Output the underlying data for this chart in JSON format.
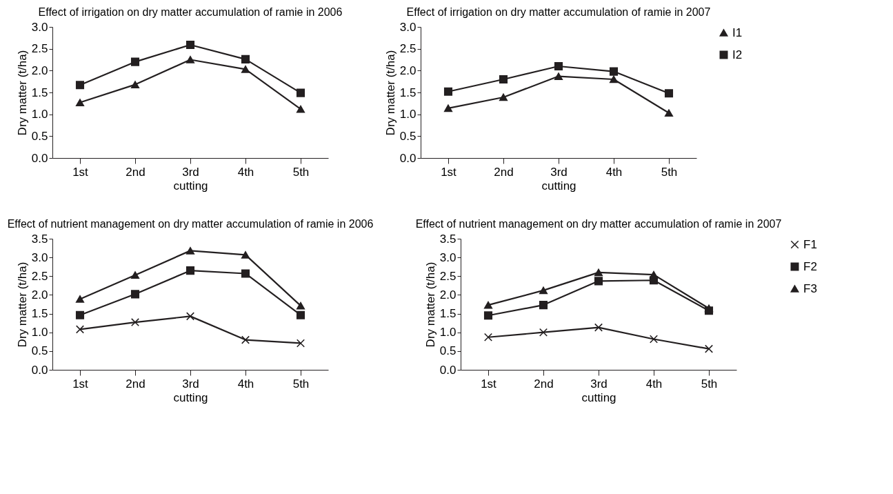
{
  "chart_data": [
    {
      "type": "line",
      "title": "Effect of irrigation on dry matter accumulation of ramie in 2006",
      "xlabel": "cutting",
      "ylabel": "Dry matter (t/ha)",
      "categories": [
        "1st",
        "2nd",
        "3rd",
        "4th",
        "5th"
      ],
      "ylim": [
        0,
        3
      ],
      "yticks": [
        {
          "value": 0,
          "label": "0.0"
        },
        0.5,
        {
          "value": 1,
          "label": "1.0"
        },
        1.5,
        {
          "value": 2,
          "label": "2.0"
        },
        2.5,
        {
          "value": 3,
          "label": "3.0"
        }
      ],
      "legend": "top right",
      "grid": false,
      "series": [
        {
          "name": "I1",
          "color": "#231f20",
          "marker": "triangle",
          "values": [
            1.27,
            1.68,
            2.25,
            2.03,
            1.12
          ]
        },
        {
          "name": "I2",
          "color": "#231f20",
          "marker": "square",
          "values": [
            1.67,
            2.2,
            2.59,
            2.26,
            1.49
          ]
        }
      ]
    },
    {
      "type": "line",
      "title": "Effect of irrigation on dry matter accumulation of ramie in 2007",
      "xlabel": "cutting",
      "ylabel": "Dry matter (t/ha)",
      "categories": [
        "1st",
        "2nd",
        "3rd",
        "4th",
        "5th"
      ],
      "ylim": [
        0,
        3
      ],
      "yticks": [
        {
          "value": 0,
          "label": "0.0"
        },
        0.5,
        {
          "value": 1,
          "label": "1.0"
        },
        1.5,
        {
          "value": 2,
          "label": "2.0"
        },
        2.5,
        {
          "value": 3,
          "label": "3.0"
        }
      ],
      "legend": "top right",
      "grid": false,
      "series": [
        {
          "name": "I1",
          "color": "#231f20",
          "marker": "triangle",
          "values": [
            1.14,
            1.39,
            1.87,
            1.8,
            1.03
          ]
        },
        {
          "name": "I2",
          "color": "#231f20",
          "marker": "square",
          "values": [
            1.52,
            1.8,
            2.1,
            1.98,
            1.48
          ]
        }
      ]
    },
    {
      "type": "line",
      "title": "Effect of nutrient management on dry matter accumulation of ramie in 2006",
      "xlabel": "cutting",
      "ylabel": "Dry matter (t/ha)",
      "categories": [
        "1st",
        "2nd",
        "3rd",
        "4th",
        "5th"
      ],
      "ylim": [
        0,
        3.5
      ],
      "yticks": [
        {
          "value": 0,
          "label": "0.0"
        },
        0.5,
        {
          "value": 1,
          "label": "1.0"
        },
        1.5,
        {
          "value": 2,
          "label": "2.0"
        },
        2.5,
        {
          "value": 3,
          "label": "3.0"
        },
        3.5
      ],
      "legend": "top right",
      "grid": false,
      "series": [
        {
          "name": "F1",
          "color": "#231f20",
          "marker": "cross",
          "values": [
            1.08,
            1.27,
            1.43,
            0.8,
            0.71
          ]
        },
        {
          "name": "F2",
          "color": "#231f20",
          "marker": "square",
          "values": [
            1.46,
            2.02,
            2.65,
            2.57,
            1.46
          ]
        },
        {
          "name": "F3",
          "color": "#231f20",
          "marker": "triangle",
          "values": [
            1.89,
            2.53,
            3.18,
            3.07,
            1.71
          ]
        }
      ]
    },
    {
      "type": "line",
      "title": "Effect of nutrient management on dry matter accumulation of ramie in 2007",
      "xlabel": "cutting",
      "ylabel": "Dry matter (t/ha)",
      "categories": [
        "1st",
        "2nd",
        "3rd",
        "4th",
        "5th"
      ],
      "ylim": [
        0,
        3.5
      ],
      "yticks": [
        {
          "value": 0,
          "label": "0.0"
        },
        0.5,
        {
          "value": 1,
          "label": "1.0"
        },
        1.5,
        {
          "value": 2,
          "label": "2.0"
        },
        2.5,
        {
          "value": 3,
          "label": "3.0"
        },
        3.5
      ],
      "legend": "right",
      "grid": false,
      "series": [
        {
          "name": "F1",
          "color": "#231f20",
          "marker": "cross",
          "values": [
            0.87,
            1.0,
            1.13,
            0.82,
            0.56
          ]
        },
        {
          "name": "F2",
          "color": "#231f20",
          "marker": "square",
          "values": [
            1.45,
            1.73,
            2.37,
            2.39,
            1.58
          ]
        },
        {
          "name": "F3",
          "color": "#231f20",
          "marker": "triangle",
          "values": [
            1.73,
            2.12,
            2.6,
            2.54,
            1.64
          ]
        }
      ]
    }
  ]
}
